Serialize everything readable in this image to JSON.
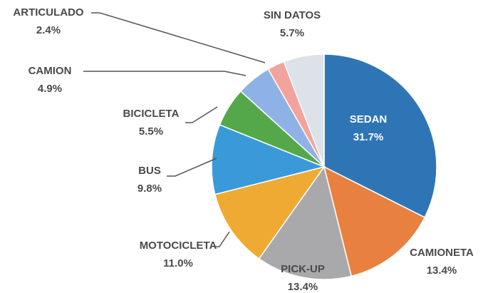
{
  "chart_data": {
    "type": "pie",
    "categories": [
      "SEDAN",
      "CAMIONETA",
      "PICK-UP",
      "MOTOCICLETA",
      "BUS",
      "BICICLETA",
      "CAMION",
      "ARTICULADO",
      "SIN DATOS"
    ],
    "values": [
      31.7,
      13.4,
      13.4,
      11.0,
      9.8,
      5.5,
      4.9,
      2.4,
      5.7
    ],
    "value_labels": [
      "31.7%",
      "13.4%",
      "13.4%",
      "11.0%",
      "9.8%",
      "5.5%",
      "4.9%",
      "2.4%",
      "5.7%"
    ],
    "colors": [
      "#2e75b6",
      "#e8803f",
      "#a9a9ab",
      "#efaa33",
      "#3a9ad9",
      "#55a84a",
      "#8fb2e6",
      "#f2a39c",
      "#dde2e8"
    ]
  }
}
